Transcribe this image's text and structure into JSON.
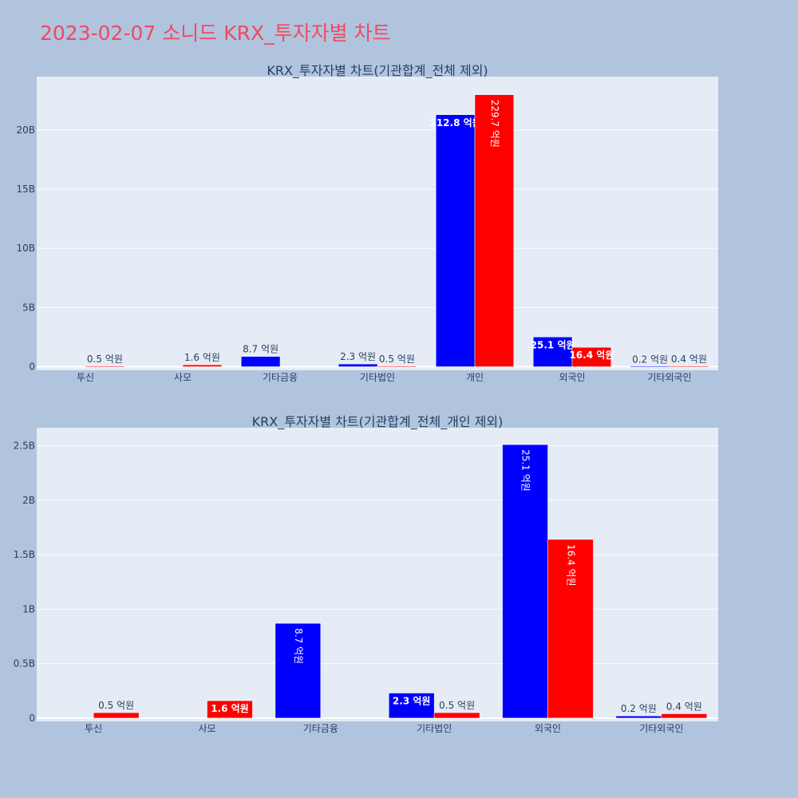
{
  "page": {
    "title": "2023-02-07 소니드 KRX_투자자별 차트"
  },
  "colors": {
    "background": "#b0c4de",
    "plot_bg": "#e5ecf6",
    "buy": "#0000ff",
    "sell": "#ff0000",
    "title": "#ef4a60"
  },
  "chart_data": [
    {
      "type": "bar",
      "title": "KRX_투자자별 차트(기관합계_전체 제외)",
      "categories": [
        "투신",
        "사모",
        "기타금융",
        "기타법인",
        "개인",
        "외국인",
        "기타외국인"
      ],
      "series": [
        {
          "color": "#0000ff",
          "values": [
            0,
            0,
            0.87,
            0.23,
            21.28,
            2.51,
            0.02
          ],
          "labels": [
            "",
            "",
            "8.7 억원",
            "2.3 억원",
            "212.8 억원",
            "25.1 억원",
            "0.2 억원"
          ]
        },
        {
          "color": "#ff0000",
          "values": [
            0.05,
            0.16,
            0,
            0.05,
            22.97,
            1.64,
            0.04
          ],
          "labels": [
            "0.5 억원",
            "1.6 억원",
            "",
            "0.5 억원",
            "229.7 억원",
            "16.4 억원",
            "0.4 억원"
          ]
        }
      ],
      "yticks": [
        "0",
        "5B",
        "10B",
        "15B",
        "20B"
      ],
      "ytick_values": [
        0,
        5,
        10,
        15,
        20
      ],
      "ylim": [
        -0.3,
        24.5
      ],
      "grid": true
    },
    {
      "type": "bar",
      "title": "KRX_투자자별 차트(기관합계_전체_개인 제외)",
      "categories": [
        "투신",
        "사모",
        "기타금융",
        "기타법인",
        "외국인",
        "기타외국인"
      ],
      "series": [
        {
          "color": "#0000ff",
          "values": [
            0,
            0,
            0.087,
            0.023,
            0.251,
            0.002
          ],
          "labels": [
            "",
            "",
            "8.7 억원",
            "2.3 억원",
            "25.1 억원",
            "0.2 억원"
          ]
        },
        {
          "color": "#ff0000",
          "values": [
            0.005,
            0.016,
            0,
            0.005,
            0.164,
            0.004
          ],
          "labels": [
            "0.5 억원",
            "1.6 억원",
            "",
            "0.5 억원",
            "16.4 억원",
            "0.4 억원"
          ]
        }
      ],
      "yticks": [
        "0",
        "0.5B",
        "1B",
        "1.5B",
        "2B",
        "2.5B"
      ],
      "ytick_values": [
        0,
        0.05,
        0.1,
        0.15,
        0.2,
        0.25
      ],
      "ylim": [
        -0.003,
        0.2665
      ],
      "grid": true
    }
  ]
}
